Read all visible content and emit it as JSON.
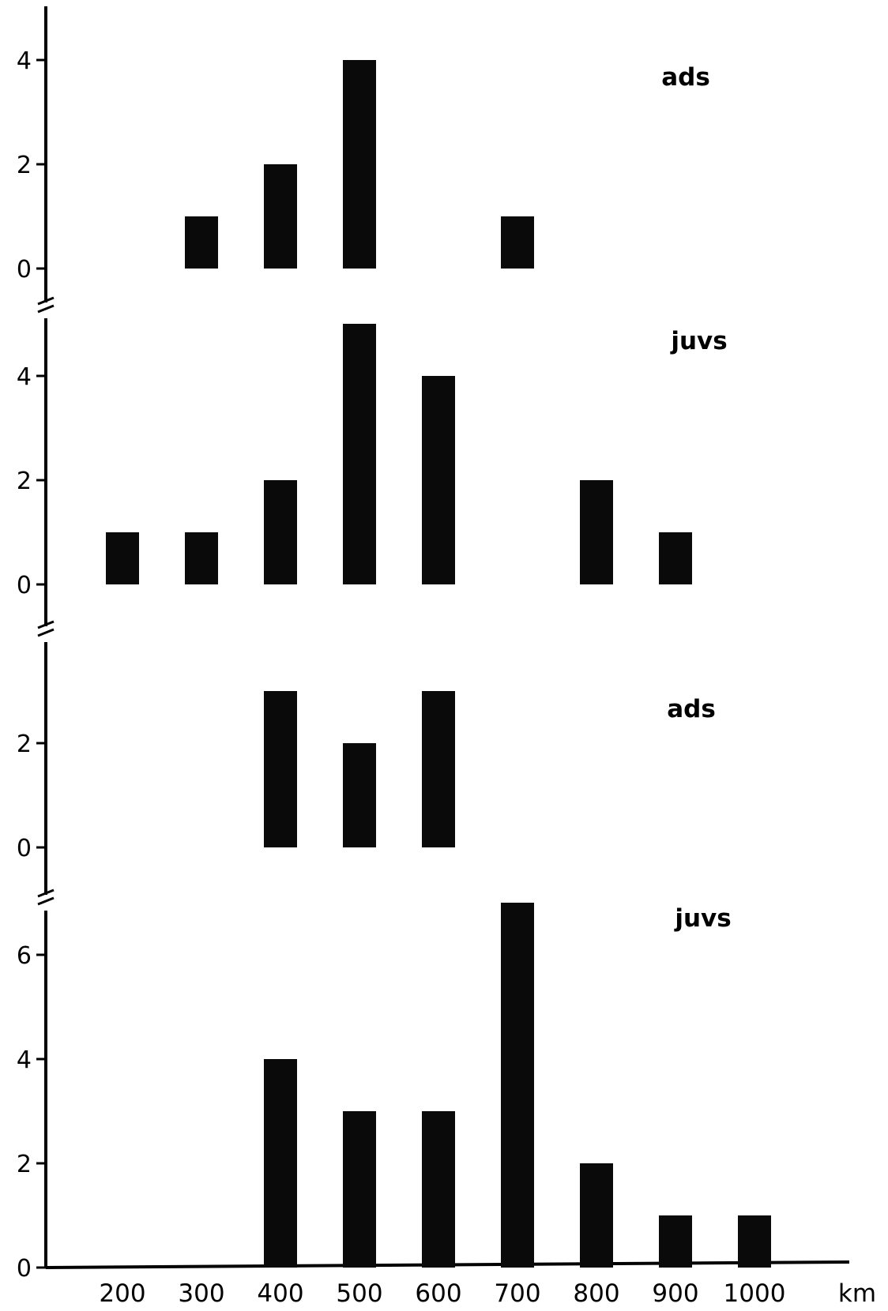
{
  "chart_data": {
    "type": "bar",
    "xunit": "km",
    "x_ticks": [
      "200",
      "300",
      "400",
      "500",
      "600",
      "700",
      "800",
      "900",
      "1000"
    ],
    "panels": [
      {
        "label": "ads",
        "yticks": [
          0,
          2,
          4
        ],
        "ylim": [
          0,
          4.8
        ],
        "bars": [
          {
            "x": 300,
            "value": 1
          },
          {
            "x": 400,
            "value": 2
          },
          {
            "x": 500,
            "value": 4
          },
          {
            "x": 700,
            "value": 1
          }
        ]
      },
      {
        "label": "juvs",
        "yticks": [
          0,
          2,
          4
        ],
        "ylim": [
          0,
          5.3
        ],
        "bars": [
          {
            "x": 200,
            "value": 1
          },
          {
            "x": 300,
            "value": 1
          },
          {
            "x": 400,
            "value": 2
          },
          {
            "x": 500,
            "value": 5
          },
          {
            "x": 600,
            "value": 4
          },
          {
            "x": 800,
            "value": 2
          },
          {
            "x": 900,
            "value": 1
          }
        ]
      },
      {
        "label": "ads",
        "yticks": [
          0,
          2
        ],
        "ylim": [
          0,
          3.8
        ],
        "bars": [
          {
            "x": 400,
            "value": 3
          },
          {
            "x": 500,
            "value": 2
          },
          {
            "x": 600,
            "value": 3
          }
        ]
      },
      {
        "label": "juvs",
        "yticks": [
          0,
          2,
          4,
          6
        ],
        "ylim": [
          0,
          7.2
        ],
        "bars": [
          {
            "x": 400,
            "value": 4
          },
          {
            "x": 500,
            "value": 3
          },
          {
            "x": 600,
            "value": 3
          },
          {
            "x": 700,
            "value": 7
          },
          {
            "x": 800,
            "value": 2
          },
          {
            "x": 900,
            "value": 1
          },
          {
            "x": 1000,
            "value": 1
          }
        ]
      }
    ]
  }
}
